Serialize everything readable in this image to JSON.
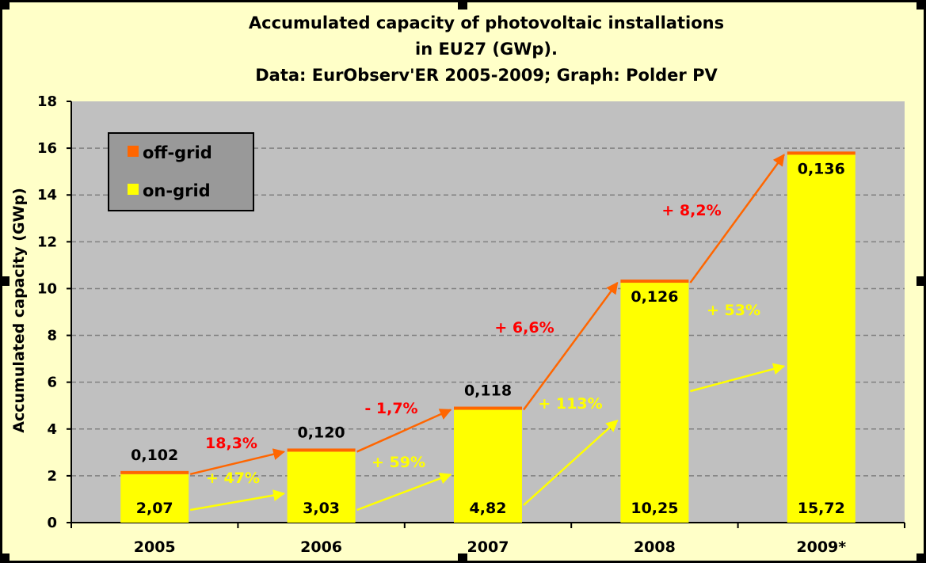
{
  "chart_data": {
    "type": "bar",
    "stacked": true,
    "title_lines": [
      "Accumulated capacity of photovoltaic installations",
      "in EU27 (GWp).",
      "Data: EurObserv'ER 2005-2009; Graph: Polder PV"
    ],
    "ylabel": "Accumulated capacity (GWp)",
    "xlabel": "",
    "ylim": [
      0,
      18
    ],
    "yticks": [
      "0",
      "2",
      "4",
      "6",
      "8",
      "10",
      "12",
      "14",
      "16",
      "18"
    ],
    "grid": true,
    "legend_position": "top-left",
    "categories": [
      "2005",
      "2006",
      "2007",
      "2008",
      "2009*"
    ],
    "series": [
      {
        "name": "on-grid",
        "color": "#FFFF00",
        "values": [
          2.07,
          3.03,
          4.82,
          10.25,
          15.72
        ],
        "labels": [
          "2,07",
          "3,03",
          "4,82",
          "10,25",
          "15,72"
        ]
      },
      {
        "name": "off-grid",
        "color": "#FF6600",
        "values": [
          0.102,
          0.12,
          0.118,
          0.126,
          0.136
        ],
        "labels": [
          "0,102",
          "0,120",
          "0,118",
          "0,126",
          "0,136"
        ]
      }
    ],
    "growth_offgrid": [
      "18,3%",
      "- 1,7%",
      "+ 6,6%",
      "+ 8,2%"
    ],
    "growth_ongrid": [
      "+ 47%",
      "+ 59%",
      "+ 113%",
      "+ 53%"
    ],
    "colors": {
      "background": "#FFFFC8",
      "plot_area": "#C0C0C0",
      "legend_box": "#999999",
      "offgrid_arrow": "#FF6600",
      "ongrid_arrow": "#FFFF00",
      "offgrid_text": "#FF0000",
      "ongrid_text": "#FFFF00"
    }
  }
}
